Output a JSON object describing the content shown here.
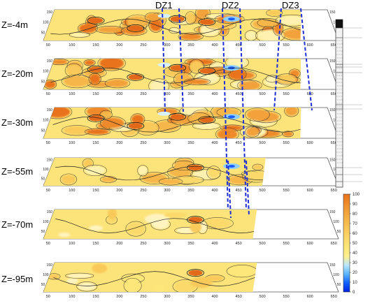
{
  "zones": [
    {
      "label": "DZ1"
    },
    {
      "label": "DZ2"
    },
    {
      "label": "DZ3"
    }
  ],
  "slices": [
    {
      "depth_label": "Z=-4m",
      "intensity": "high",
      "clip_x": 600
    },
    {
      "depth_label": "Z=-20m",
      "intensity": "high",
      "clip_x": 600
    },
    {
      "depth_label": "Z=-30m",
      "intensity": "high",
      "clip_x": 600
    },
    {
      "depth_label": "Z=-55m",
      "intensity": "medium",
      "clip_x": 520
    },
    {
      "depth_label": "Z=-70m",
      "intensity": "low",
      "clip_x": 500
    },
    {
      "depth_label": "Z=-95m",
      "intensity": "low",
      "clip_x": 500
    }
  ],
  "x_ticks": [
    "50",
    "100",
    "150",
    "200",
    "250",
    "300",
    "350",
    "400",
    "450",
    "500",
    "550",
    "600",
    "650"
  ],
  "y_ticks": [
    "150",
    "100",
    "50"
  ],
  "colorbar": {
    "ticks": [
      "100",
      "90",
      "80",
      "70",
      "60",
      "50",
      "40",
      "30",
      "20",
      "10",
      "0"
    ],
    "colors": [
      "#e8731c",
      "#ee8a2a",
      "#f2a13a",
      "#f6b64a",
      "#f9c95a",
      "#fbd96a",
      "#fde67a",
      "#fff08c",
      "#b8e6ff",
      "#5ab4ff",
      "#1060ff",
      "#0020e0"
    ]
  },
  "colors": {
    "plane_fill": "#fde47a",
    "contour": "#222222",
    "dashed": "#1f2fd6"
  }
}
